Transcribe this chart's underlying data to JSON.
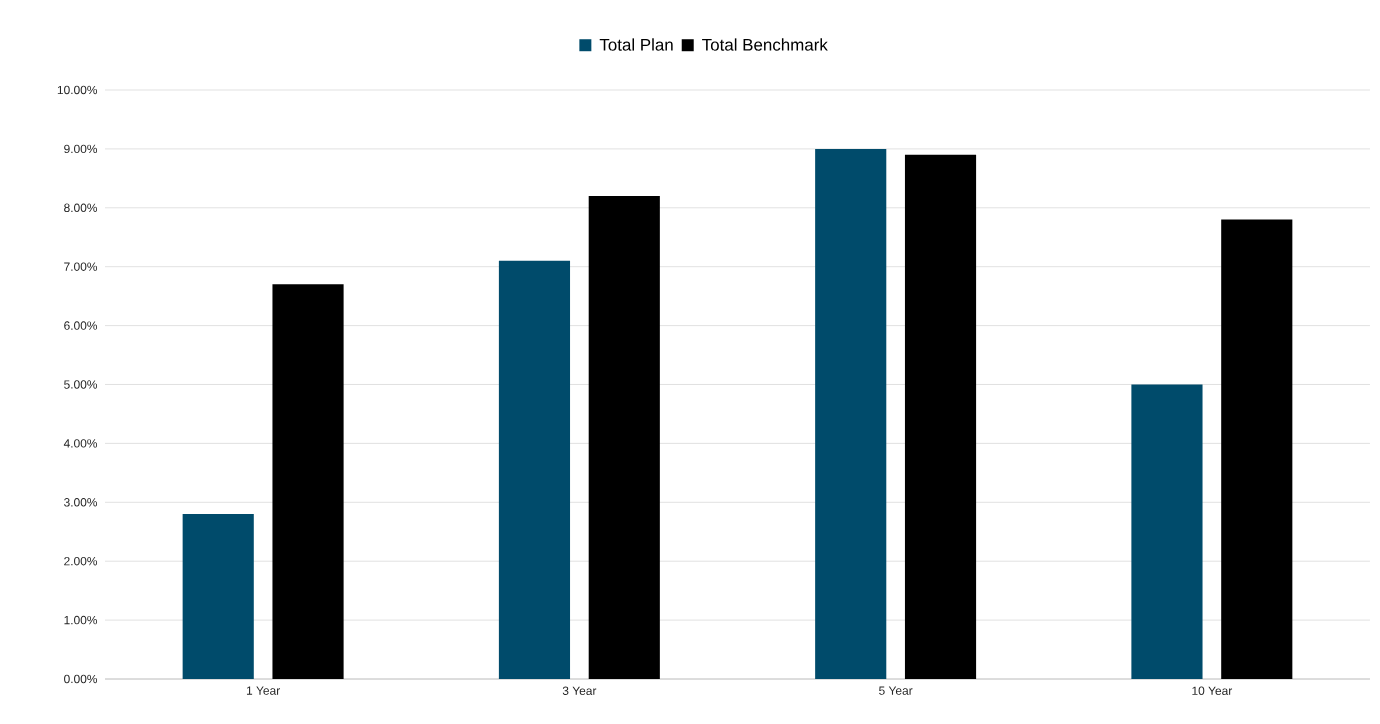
{
  "chart_data": {
    "type": "bar",
    "categories": [
      "1 Year",
      "3 Year",
      "5 Year",
      "10 Year"
    ],
    "series": [
      {
        "name": "Total Plan",
        "color": "#004b6b",
        "values": [
          2.8,
          7.1,
          9.0,
          5.0
        ]
      },
      {
        "name": "Total Benchmark",
        "color": "#000000",
        "values": [
          6.7,
          8.2,
          8.9,
          7.8
        ]
      }
    ],
    "ylim": [
      0,
      10
    ],
    "yticks": [
      {
        "value": 0,
        "label": "0.00%"
      },
      {
        "value": 1,
        "label": "1.00%"
      },
      {
        "value": 2,
        "label": "2.00%"
      },
      {
        "value": 3,
        "label": "3.00%"
      },
      {
        "value": 4,
        "label": "4.00%"
      },
      {
        "value": 5,
        "label": "5.00%"
      },
      {
        "value": 6,
        "label": "6.00%"
      },
      {
        "value": 7,
        "label": "7.00%"
      },
      {
        "value": 8,
        "label": "8.00%"
      },
      {
        "value": 9,
        "label": "9.00%"
      },
      {
        "value": 10,
        "label": "10.00%"
      }
    ],
    "grid": "y",
    "legend": "top"
  }
}
